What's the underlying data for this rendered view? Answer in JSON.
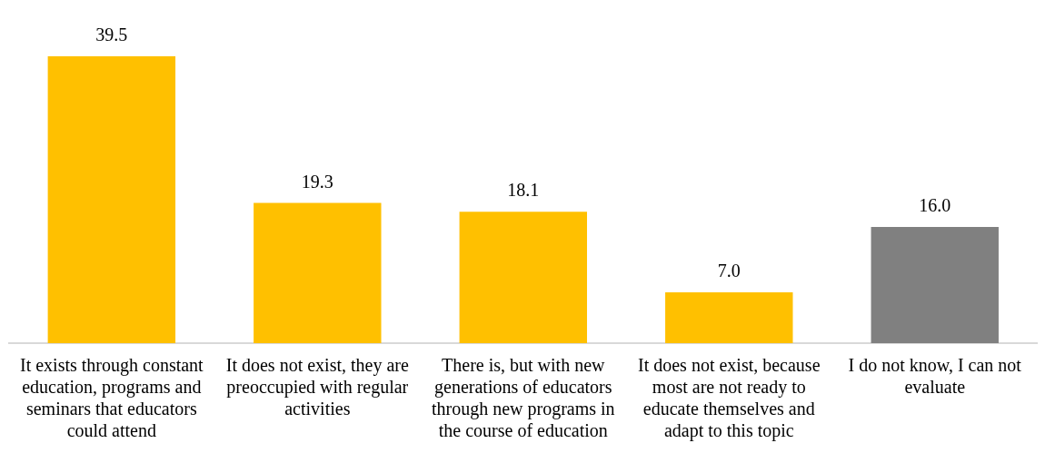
{
  "chart_data": {
    "type": "bar",
    "categories": [
      "It exists through constant education, programs and seminars that educators could attend",
      "It does not exist, they are preoccupied with regular activities",
      "There is, but with new generations of educators through new programs in the course of education",
      "It does not exist, because most are not ready to educate themselves and adapt to this topic",
      "I do not know, I can not evaluate"
    ],
    "values": [
      39.5,
      19.3,
      18.1,
      7.0,
      16.0
    ],
    "value_labels": [
      "39.5",
      "19.3",
      "18.1",
      "7.0",
      "16.0"
    ],
    "colors": [
      "#ffc000",
      "#ffc000",
      "#ffc000",
      "#ffc000",
      "#808080"
    ],
    "tick_labels": "x",
    "grid": false,
    "legend": false
  }
}
